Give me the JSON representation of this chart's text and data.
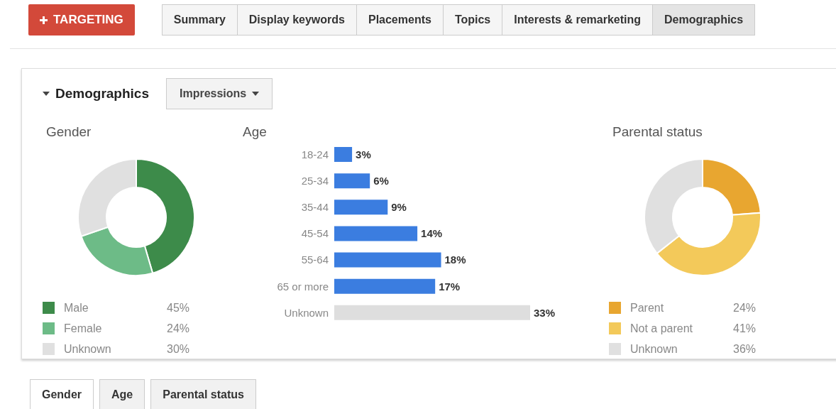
{
  "chart_data": [
    {
      "type": "other",
      "annotations": [
        "TARGETING",
        "Summary",
        "Display keywords",
        "Placements",
        "Topics",
        "Interests & remarketing",
        "Demographics"
      ]
    },
    {
      "type": "other",
      "annotations": [
        "Demographics",
        "Impressions"
      ]
    },
    {
      "type": "donut",
      "title": "Gender",
      "categories": [
        "Male",
        "Female",
        "Unknown"
      ],
      "values": [
        45,
        24,
        30
      ],
      "value_labels": [
        "45%",
        "24%",
        "30%"
      ],
      "colors": [
        "#3d8b4a",
        "#6dbb87",
        "#e0e0e0"
      ],
      "legend": "bottom"
    },
    {
      "type": "bar",
      "orientation": "horizontal",
      "title": "Age",
      "categories": [
        "18-24",
        "25-34",
        "35-44",
        "45-54",
        "55-64",
        "65 or more",
        "Unknown"
      ],
      "values": [
        3,
        6,
        9,
        14,
        18,
        17,
        33
      ],
      "value_labels": [
        "3%",
        "6%",
        "9%",
        "14%",
        "18%",
        "17%",
        "33%"
      ],
      "colors": [
        "#3b7de0",
        "#3b7de0",
        "#3b7de0",
        "#3b7de0",
        "#3b7de0",
        "#3b7de0",
        "#dedede"
      ]
    },
    {
      "type": "donut",
      "title": "Parental status",
      "categories": [
        "Parent",
        "Not a parent",
        "Unknown"
      ],
      "values": [
        24,
        41,
        36
      ],
      "value_labels": [
        "24%",
        "41%",
        "36%"
      ],
      "colors": [
        "#e8a630",
        "#f3c95a",
        "#e0e0e0"
      ],
      "legend": "bottom"
    },
    {
      "type": "other",
      "annotations": [
        "Gender",
        "Age",
        "Parental status"
      ]
    }
  ]
}
